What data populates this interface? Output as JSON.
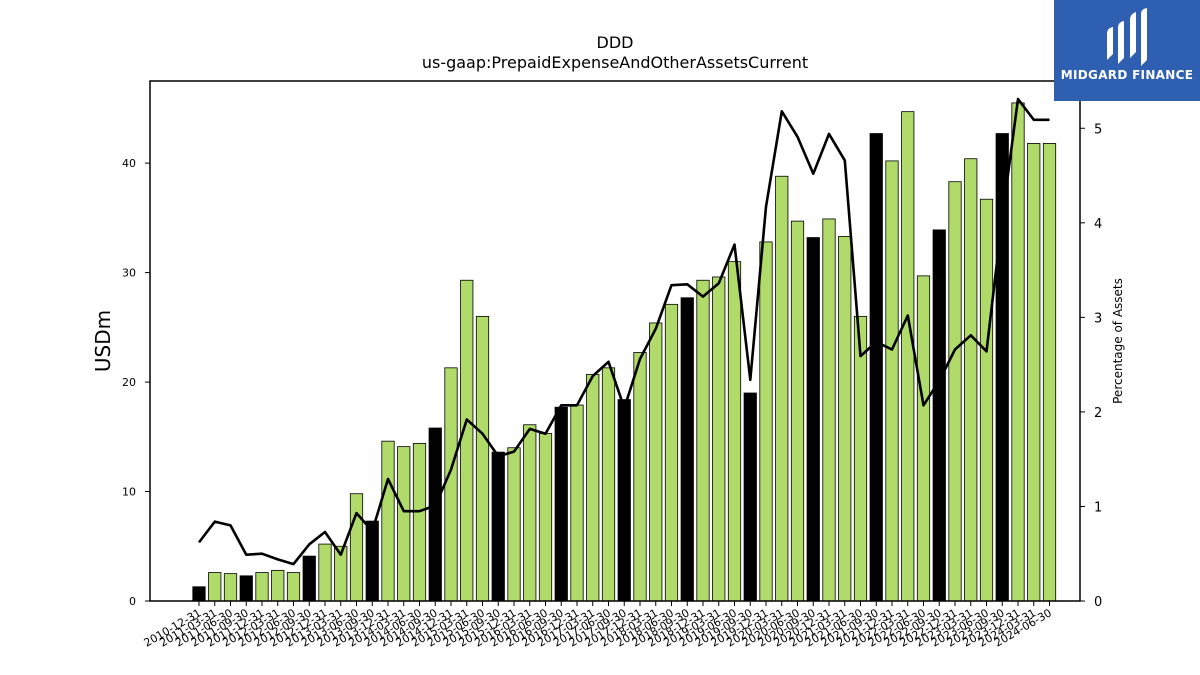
{
  "branding": {
    "name": "MIDGARD FINANCE"
  },
  "chart_data": {
    "type": "bar",
    "title": "DDD",
    "subtitle": "us-gaap:PrepaidExpenseAndOtherAssetsCurrent",
    "ylabel": "USDm",
    "y2label": "Percentage of Assets",
    "ylim": [
      0,
      47.5
    ],
    "yticks": [
      0,
      10,
      20,
      30,
      40
    ],
    "y2lim": [
      0,
      5.5
    ],
    "y2ticks": [
      0,
      1,
      2,
      3,
      4,
      5
    ],
    "colors": {
      "annual": "#000000",
      "quarterly": "#b0da6a",
      "line": "#000000"
    },
    "categories": [
      "2010-12-31",
      "2011-03-31",
      "2011-06-30",
      "2011-09-30",
      "2011-12-31",
      "2012-03-31",
      "2012-06-30",
      "2012-09-30",
      "2012-12-31",
      "2013-03-31",
      "2013-06-30",
      "2013-09-30",
      "2013-12-31",
      "2014-03-31",
      "2014-06-30",
      "2014-09-30",
      "2014-12-31",
      "2015-03-31",
      "2015-06-30",
      "2015-09-30",
      "2015-12-31",
      "2016-03-31",
      "2016-06-30",
      "2016-09-30",
      "2016-12-31",
      "2017-03-31",
      "2017-06-30",
      "2017-09-30",
      "2017-12-31",
      "2018-03-31",
      "2018-06-30",
      "2018-09-30",
      "2018-12-31",
      "2019-03-31",
      "2019-06-30",
      "2019-09-30",
      "2019-12-31",
      "2020-03-31",
      "2020-06-30",
      "2020-09-30",
      "2020-12-31",
      "2021-03-31",
      "2021-06-30",
      "2021-09-30",
      "2021-12-31",
      "2022-03-31",
      "2022-06-30",
      "2022-09-30",
      "2022-12-31",
      "2023-03-31",
      "2023-06-30",
      "2023-09-30",
      "2023-12-31",
      "2024-03-31",
      "2024-06-30"
    ],
    "series": [
      {
        "values": [
          1.3,
          2.6,
          2.5,
          2.3,
          2.6,
          2.8,
          2.6,
          4.1,
          5.2,
          5.0,
          9.8,
          7.3,
          14.6,
          14.1,
          14.4,
          15.8,
          21.3,
          29.3,
          26.0,
          13.6,
          14.0,
          16.1,
          15.3,
          17.7,
          17.9,
          20.7,
          21.3,
          18.4,
          22.7,
          25.4,
          27.1,
          27.7,
          29.3,
          29.6,
          31.0,
          19.0,
          32.8,
          38.8,
          34.7,
          33.2,
          34.9,
          33.3,
          26.0,
          42.7,
          40.2,
          44.7,
          29.7,
          33.9,
          38.3,
          40.4,
          36.7,
          42.7,
          45.5,
          41.8,
          41.8
        ],
        "fiscal_year_end": [
          true,
          false,
          false,
          true,
          false,
          false,
          false,
          true,
          false,
          false,
          false,
          true,
          false,
          false,
          false,
          true,
          false,
          false,
          false,
          true,
          false,
          false,
          false,
          true,
          false,
          false,
          false,
          true,
          false,
          false,
          false,
          true,
          false,
          false,
          false,
          true,
          false,
          false,
          false,
          true,
          false,
          false,
          false,
          true,
          false,
          false,
          false,
          true,
          false,
          false,
          false,
          true,
          false,
          false,
          false
        ]
      },
      {
        "values": [
          0.62,
          0.84,
          0.8,
          0.49,
          0.5,
          0.44,
          0.39,
          0.6,
          0.73,
          0.49,
          0.93,
          0.74,
          1.29,
          0.95,
          0.95,
          1.01,
          1.39,
          1.92,
          1.77,
          1.53,
          1.58,
          1.82,
          1.77,
          2.07,
          2.07,
          2.38,
          2.53,
          2.04,
          2.56,
          2.88,
          3.34,
          3.35,
          3.22,
          3.36,
          3.77,
          2.34,
          4.17,
          5.18,
          4.91,
          4.52,
          4.94,
          4.66,
          2.59,
          2.74,
          2.66,
          3.02,
          2.07,
          2.33,
          2.66,
          2.81,
          2.64,
          4.06,
          5.31,
          5.09,
          5.09
        ]
      }
    ]
  }
}
